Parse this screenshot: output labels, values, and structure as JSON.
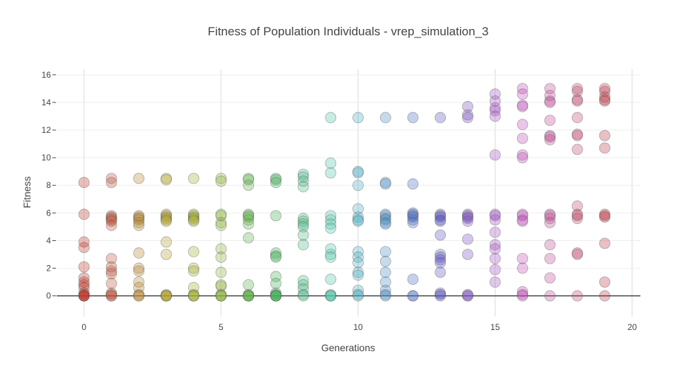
{
  "chart_data": {
    "type": "scatter",
    "title": "Fitness of Population Individuals - vrep_simulation_3",
    "xlabel": "Generations",
    "ylabel": "Fitness",
    "xlim": [
      -1,
      20.3
    ],
    "ylim": [
      -1.5,
      16.4
    ],
    "xticks": [
      0,
      5,
      10,
      15,
      20
    ],
    "yticks": [
      0,
      2,
      4,
      6,
      8,
      10,
      12,
      14,
      16
    ],
    "grid": true,
    "legend": "none",
    "generations": [
      {
        "x": 0,
        "color": "#c0392b",
        "values": [
          8.2,
          5.9,
          3.9,
          3.5,
          2.1,
          1.3,
          1.0,
          0.8,
          0.6,
          0.2,
          0.1,
          0,
          0,
          0,
          0
        ]
      },
      {
        "x": 1,
        "color": "#c0533a",
        "values": [
          8.5,
          8.2,
          5.8,
          5.7,
          5.6,
          5.5,
          5.4,
          5.1,
          2.7,
          2.1,
          1.8,
          1.6,
          0.9,
          0.2,
          0.1,
          0,
          0
        ]
      },
      {
        "x": 2,
        "color": "#b8862e",
        "values": [
          8.5,
          5.8,
          5.7,
          5.6,
          5.5,
          5.3,
          5.1,
          3.1,
          2.0,
          1.8,
          1.0,
          0.6,
          0.1,
          0,
          0
        ]
      },
      {
        "x": 3,
        "color": "#b0a12a",
        "values": [
          8.5,
          8.4,
          5.9,
          5.8,
          5.7,
          5.6,
          5.5,
          5.4,
          3.9,
          3.0,
          0.1,
          0,
          0,
          0,
          0
        ]
      },
      {
        "x": 4,
        "color": "#a4ad2d",
        "values": [
          8.5,
          5.9,
          5.8,
          5.7,
          5.6,
          5.5,
          5.4,
          3.2,
          2.0,
          1.8,
          0.6,
          0.1,
          0,
          0,
          0
        ]
      },
      {
        "x": 5,
        "color": "#8bb03a",
        "values": [
          8.5,
          8.3,
          5.9,
          5.8,
          5.3,
          5.1,
          3.4,
          2.8,
          1.7,
          0.8,
          0.7,
          0.1,
          0,
          0,
          0
        ]
      },
      {
        "x": 6,
        "color": "#5cb048",
        "values": [
          8.5,
          8.4,
          8.0,
          5.9,
          5.8,
          5.7,
          5.5,
          5.2,
          4.2,
          0.8,
          0.1,
          0,
          0,
          0,
          0
        ]
      },
      {
        "x": 7,
        "color": "#45b25a",
        "values": [
          8.5,
          8.4,
          8.2,
          5.8,
          3.1,
          2.9,
          2.8,
          1.4,
          0.9,
          0.2,
          0.1,
          0,
          0,
          0,
          0
        ]
      },
      {
        "x": 8,
        "color": "#4cbb82",
        "values": [
          8.8,
          8.6,
          8.3,
          7.9,
          5.6,
          5.4,
          5.2,
          5.0,
          4.4,
          3.7,
          1.1,
          0.8,
          0.5,
          0.1,
          0
        ]
      },
      {
        "x": 9,
        "color": "#4dc7a8",
        "values": [
          12.9,
          9.6,
          8.9,
          5.8,
          5.5,
          5.2,
          4.9,
          3.4,
          3.0,
          2.8,
          1.2,
          0.1,
          0,
          0,
          0
        ]
      },
      {
        "x": 10,
        "color": "#47aec4",
        "values": [
          12.9,
          9.0,
          8.9,
          8.0,
          6.3,
          5.7,
          5.5,
          5.4,
          3.2,
          2.8,
          2.4,
          1.7,
          1.5,
          0.4,
          0.1,
          0
        ]
      },
      {
        "x": 11,
        "color": "#4b8fc7",
        "values": [
          12.9,
          8.2,
          8.1,
          5.9,
          5.8,
          5.6,
          5.5,
          5.3,
          5.2,
          3.2,
          2.5,
          1.7,
          1.0,
          0.4,
          0.1,
          0
        ]
      },
      {
        "x": 12,
        "color": "#4a6dc4",
        "values": [
          12.9,
          8.1,
          6.0,
          5.9,
          5.8,
          5.7,
          5.5,
          5.3,
          1.2,
          0,
          0
        ]
      },
      {
        "x": 13,
        "color": "#5a55c0",
        "values": [
          12.9,
          5.9,
          5.8,
          5.7,
          5.5,
          5.4,
          4.4,
          3.0,
          2.8,
          2.6,
          2.4,
          1.7,
          0.2,
          0.1,
          0
        ]
      },
      {
        "x": 14,
        "color": "#7b50c2",
        "values": [
          13.7,
          13.1,
          12.9,
          5.9,
          5.8,
          5.7,
          5.6,
          5.4,
          4.1,
          3.0,
          0.1,
          0,
          0
        ]
      },
      {
        "x": 15,
        "color": "#a552c4",
        "values": [
          14.6,
          14.1,
          13.6,
          13.4,
          13.0,
          10.2,
          5.9,
          5.8,
          5.5,
          4.6,
          3.7,
          3.4,
          2.7,
          1.9,
          1.0
        ]
      },
      {
        "x": 16,
        "color": "#c04fba",
        "values": [
          15.0,
          14.6,
          13.8,
          13.7,
          12.4,
          11.4,
          10.2,
          10.0,
          5.9,
          5.8,
          5.5,
          5.4,
          2.7,
          2.0,
          0.3,
          0.1,
          0
        ]
      },
      {
        "x": 17,
        "color": "#c24a95",
        "values": [
          15.0,
          14.5,
          14.1,
          14.0,
          12.7,
          11.6,
          11.5,
          11.3,
          5.9,
          5.8,
          5.6,
          5.3,
          3.7,
          2.7,
          1.3,
          0
        ]
      },
      {
        "x": 18,
        "color": "#c2476b",
        "values": [
          15.0,
          14.8,
          14.2,
          14.1,
          12.9,
          11.7,
          11.6,
          10.6,
          6.5,
          5.9,
          5.8,
          5.6,
          3.1,
          3.0,
          0
        ]
      },
      {
        "x": 19,
        "color": "#bf3b47",
        "values": [
          15.0,
          14.8,
          14.4,
          14.2,
          14.1,
          11.6,
          10.7,
          5.9,
          5.8,
          5.7,
          3.8,
          1.0,
          0
        ]
      }
    ]
  }
}
